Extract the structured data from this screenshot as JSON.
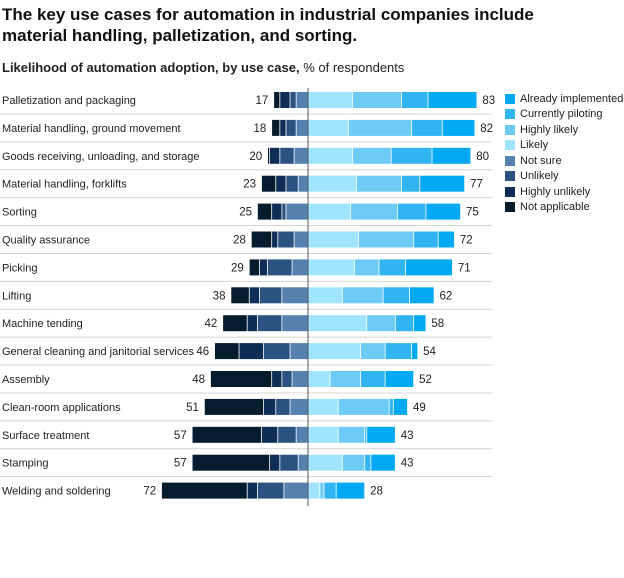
{
  "title": "The key use cases for automation in industrial companies include material handling, palletization, and sorting.",
  "subtitle_bold": "Likelihood of automation adoption, by use case,",
  "subtitle_unit": "% of respondents",
  "chart_data": {
    "type": "bar",
    "orientation": "horizontal-diverging-stacked",
    "grid": false,
    "legend_position": "right",
    "categories": [
      "Palletization and packaging",
      "Material handling, ground movement",
      "Goods receiving, unloading, and storage",
      "Material handling, forklifts",
      "Sorting",
      "Quality assurance",
      "Picking",
      "Lifting",
      "Machine tending",
      "General cleaning and janitorial services",
      "Assembly",
      "Clean-room applications",
      "Surface treatment",
      "Stamping",
      "Welding and soldering"
    ],
    "left_totals": [
      17,
      18,
      20,
      23,
      25,
      28,
      29,
      38,
      42,
      46,
      48,
      51,
      57,
      57,
      72
    ],
    "right_totals": [
      83,
      82,
      80,
      77,
      75,
      72,
      71,
      62,
      58,
      54,
      52,
      49,
      43,
      43,
      28
    ],
    "series": [
      {
        "name": "Already implemented",
        "side": "right",
        "color": "#00a9f4",
        "values": [
          24,
          16,
          19,
          22,
          17,
          8,
          23,
          12,
          6,
          3,
          14,
          7,
          14,
          12,
          14
        ]
      },
      {
        "name": "Currently piloting",
        "side": "right",
        "color": "#31b4f2",
        "values": [
          13,
          15,
          20,
          9,
          14,
          12,
          13,
          13,
          9,
          13,
          12,
          2,
          1,
          3,
          6
        ]
      },
      {
        "name": "Highly likely",
        "side": "right",
        "color": "#6ecbf6",
        "values": [
          24,
          31,
          19,
          22,
          23,
          27,
          12,
          20,
          14,
          12,
          15,
          25,
          13,
          11,
          2
        ]
      },
      {
        "name": "Likely",
        "side": "right",
        "color": "#9fe5ff",
        "values": [
          22,
          20,
          22,
          24,
          21,
          25,
          23,
          17,
          29,
          26,
          11,
          15,
          15,
          17,
          6
        ]
      },
      {
        "name": "Not sure",
        "side": "left",
        "color": "#5581b0",
        "values": [
          6,
          6,
          7,
          5,
          11,
          7,
          8,
          13,
          13,
          9,
          8,
          9,
          6,
          5,
          12
        ]
      },
      {
        "name": "Unlikely",
        "side": "left",
        "color": "#2b5382",
        "values": [
          3,
          5,
          7,
          6,
          2,
          8,
          12,
          11,
          12,
          13,
          5,
          7,
          9,
          9,
          13
        ]
      },
      {
        "name": "Highly unlikely",
        "side": "left",
        "color": "#0f2e57",
        "values": [
          5,
          3,
          5,
          5,
          5,
          3,
          4,
          5,
          5,
          12,
          5,
          6,
          8,
          5,
          5
        ]
      },
      {
        "name": "Not applicable",
        "side": "left",
        "color": "#051c2c",
        "values": [
          3,
          4,
          1,
          7,
          7,
          10,
          5,
          9,
          12,
          12,
          30,
          29,
          34,
          38,
          42
        ]
      }
    ]
  }
}
